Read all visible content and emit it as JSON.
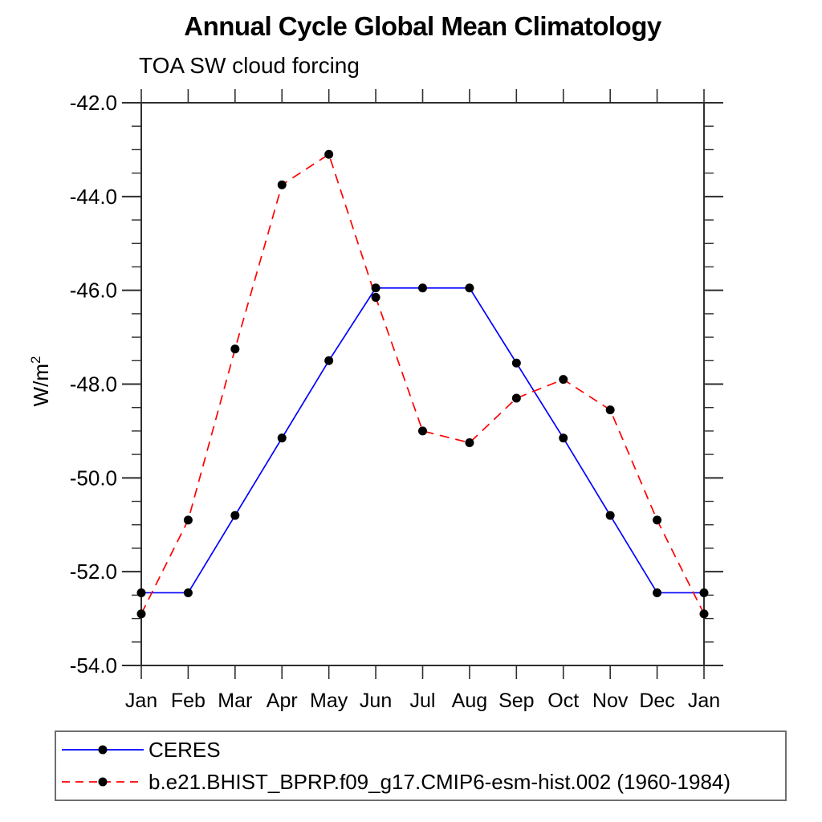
{
  "chart_data": {
    "type": "line",
    "title": "Annual Cycle Global Mean Climatology",
    "subtitle": "TOA SW cloud forcing",
    "ylabel_base": "W/m",
    "ylabel_exponent": "2",
    "x_categories": [
      "Jan",
      "Feb",
      "Mar",
      "Apr",
      "May",
      "Jun",
      "Jul",
      "Aug",
      "Sep",
      "Oct",
      "Nov",
      "Dec",
      "Jan"
    ],
    "ylim": [
      -54.0,
      -42.0
    ],
    "ytick_major_step": 2.0,
    "ytick_minor_step": 0.5,
    "ytick_labels": [
      "-42.0",
      "-44.0",
      "-46.0",
      "-48.0",
      "-50.0",
      "-52.0",
      "-54.0"
    ],
    "grid": false,
    "legend_position": "bottom-left-box",
    "series": [
      {
        "name": "CERES",
        "color": "#0000ff",
        "line_style": "solid",
        "marker": "filled-circle",
        "marker_color": "#000000",
        "values": [
          -52.45,
          -52.45,
          -50.8,
          -49.15,
          -47.5,
          -45.95,
          -45.95,
          -45.95,
          -47.55,
          -49.15,
          -50.8,
          -52.45,
          -52.45
        ]
      },
      {
        "name": "b.e21.BHIST_BPRP.f09_g17.CMIP6-esm-hist.002 (1960-1984)",
        "color": "#ff0000",
        "line_style": "dashed",
        "marker": "filled-circle",
        "marker_color": "#000000",
        "values": [
          -52.9,
          -50.9,
          -47.25,
          -43.75,
          -43.1,
          -46.15,
          -49.0,
          -49.25,
          -48.3,
          -47.9,
          -48.55,
          -50.9,
          -52.9
        ]
      }
    ]
  }
}
